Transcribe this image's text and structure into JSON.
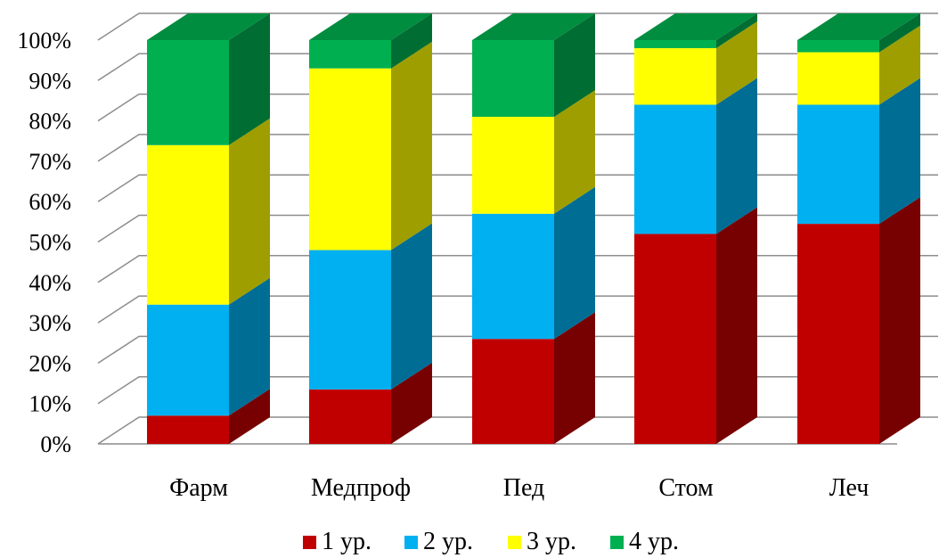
{
  "chart_data": {
    "type": "bar",
    "stacked": true,
    "percent": true,
    "three_d": true,
    "categories": [
      "Фарм",
      "Медпроф",
      "Пед",
      "Стом",
      "Леч"
    ],
    "series": [
      {
        "name": "1 ур.",
        "color": "#C00000",
        "values": [
          7,
          13.5,
          26,
          52,
          54.5
        ]
      },
      {
        "name": "2 ур.",
        "color": "#00B0F0",
        "values": [
          27.5,
          34.5,
          31,
          32,
          29.5
        ]
      },
      {
        "name": "3 ур.",
        "color": "#FFFF00",
        "values": [
          39.5,
          45,
          24,
          14,
          13
        ]
      },
      {
        "name": "4 ур.",
        "color": "#00B050",
        "values": [
          26,
          7,
          19,
          2,
          3
        ]
      }
    ],
    "y_ticks": [
      "0%",
      "10%",
      "20%",
      "30%",
      "40%",
      "50%",
      "60%",
      "70%",
      "80%",
      "90%",
      "100%"
    ],
    "ylim": [
      0,
      100
    ],
    "title": "",
    "xlabel": "",
    "ylabel": "",
    "grid": true,
    "legend_position": "bottom"
  }
}
